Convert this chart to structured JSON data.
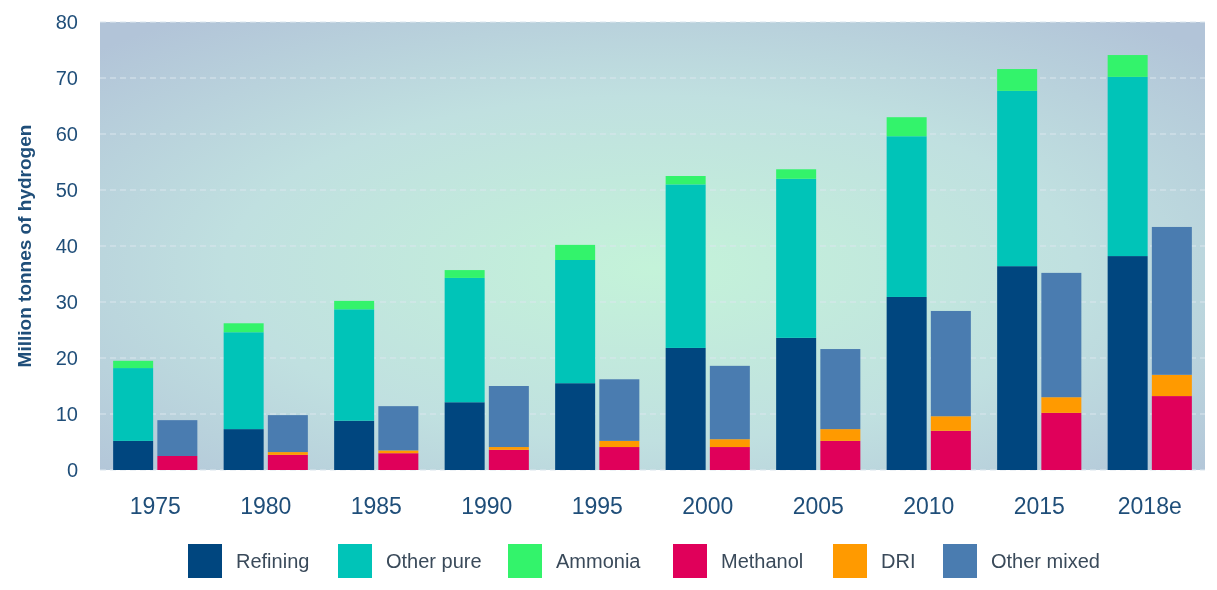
{
  "chart_data": {
    "type": "bar",
    "stacked": true,
    "ylabel": "Million tonnes of hydrogen",
    "categories": [
      null,
      null,
      "1975",
      null,
      null,
      null,
      null,
      "1980",
      null,
      null,
      null,
      null,
      "1985",
      null,
      null,
      null,
      null,
      "1990",
      null,
      null,
      null,
      null,
      "1995",
      null,
      null,
      null,
      null,
      "2000",
      null,
      null,
      null,
      null,
      "2005",
      null,
      null,
      null,
      null,
      "2010",
      null,
      null,
      null,
      null,
      "2015",
      null,
      null,
      null,
      null,
      "2018e",
      null,
      null
    ],
    "ylim": [
      0,
      80
    ],
    "yticks": [
      0,
      10,
      20,
      30,
      40,
      50,
      60,
      70,
      80
    ],
    "grid": "y",
    "legend": "bottom",
    "series": [
      {
        "name": "Refining",
        "color": "#00467f",
        "values": [
          null,
          5.2,
          null,
          null,
          null,
          null,
          7.3,
          null,
          null,
          null,
          null,
          8.8,
          null,
          null,
          null,
          null,
          12.1,
          null,
          null,
          null,
          null,
          15.5,
          null,
          null,
          null,
          null,
          21.8,
          null,
          null,
          null,
          null,
          23.6,
          null,
          null,
          null,
          null,
          30.9,
          null,
          null,
          null,
          null,
          36.4,
          null,
          null,
          null,
          null,
          38.2,
          null,
          null,
          null
        ]
      },
      {
        "name": "Other pure",
        "color": "#00c4b8",
        "values": [
          null,
          13,
          null,
          null,
          null,
          null,
          17.3,
          null,
          null,
          null,
          null,
          19.9,
          null,
          null,
          null,
          null,
          22.2,
          null,
          null,
          null,
          null,
          22,
          null,
          null,
          null,
          null,
          29.2,
          null,
          null,
          null,
          null,
          28.4,
          null,
          null,
          null,
          null,
          28.7,
          null,
          null,
          null,
          null,
          31.3,
          null,
          null,
          null,
          null,
          32,
          null,
          null,
          null
        ]
      },
      {
        "name": "Ammonia",
        "color": "#33f36b",
        "values": [
          null,
          1.3,
          null,
          null,
          null,
          null,
          1.6,
          null,
          null,
          null,
          null,
          1.5,
          null,
          null,
          null,
          null,
          1.4,
          null,
          null,
          null,
          null,
          2.7,
          null,
          null,
          null,
          null,
          1.5,
          null,
          null,
          null,
          null,
          1.7,
          null,
          null,
          null,
          null,
          3.4,
          null,
          null,
          null,
          null,
          3.9,
          null,
          null,
          null,
          null,
          3.9,
          null,
          null,
          null
        ]
      },
      {
        "name": "Methanol",
        "color": "#e0005a",
        "values": [
          null,
          null,
          null,
          2.5,
          null,
          null,
          null,
          null,
          2.7,
          null,
          null,
          null,
          null,
          3,
          null,
          null,
          null,
          null,
          3.6,
          null,
          null,
          null,
          null,
          4.1,
          null,
          null,
          null,
          null,
          4.1,
          null,
          null,
          null,
          null,
          5.2,
          null,
          null,
          null,
          null,
          7,
          null,
          null,
          null,
          null,
          10.2,
          null,
          null,
          null,
          null,
          13.2,
          null
        ]
      },
      {
        "name": "DRI",
        "color": "#ff9a00",
        "values": [
          null,
          null,
          null,
          0,
          null,
          null,
          null,
          null,
          0.5,
          null,
          null,
          null,
          null,
          0.5,
          null,
          null,
          null,
          null,
          0.5,
          null,
          null,
          null,
          null,
          1.1,
          null,
          null,
          null,
          null,
          1.4,
          null,
          null,
          null,
          null,
          2.1,
          null,
          null,
          null,
          null,
          2.6,
          null,
          null,
          null,
          null,
          2.8,
          null,
          null,
          null,
          null,
          3.8,
          null
        ]
      },
      {
        "name": "Other mixed",
        "color": "#4a7cb0",
        "values": [
          null,
          null,
          null,
          6.4,
          null,
          null,
          null,
          null,
          6.6,
          null,
          null,
          null,
          null,
          7.9,
          null,
          null,
          null,
          null,
          10.9,
          null,
          null,
          null,
          null,
          11,
          null,
          null,
          null,
          null,
          13.1,
          null,
          null,
          null,
          null,
          14.3,
          null,
          null,
          null,
          null,
          18.8,
          null,
          null,
          null,
          null,
          22.2,
          null,
          null,
          null,
          null,
          26.4,
          null
        ]
      }
    ]
  }
}
